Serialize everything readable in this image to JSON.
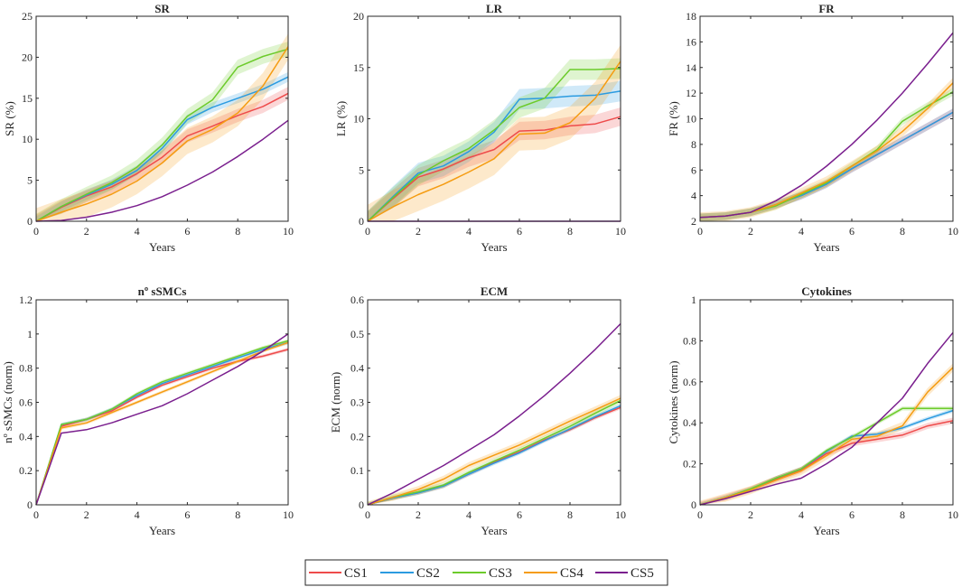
{
  "figure": {
    "background": "#ffffff"
  },
  "series_styles": [
    {
      "name": "CS1",
      "color": "#ee4b4b"
    },
    {
      "name": "CS2",
      "color": "#2b9be0"
    },
    {
      "name": "CS3",
      "color": "#6ccb2b"
    },
    {
      "name": "CS4",
      "color": "#f59c12"
    },
    {
      "name": "CS5",
      "color": "#7a1f8e"
    }
  ],
  "legend": {
    "placement": "bottom-center",
    "entries": [
      "CS1",
      "CS2",
      "CS3",
      "CS4",
      "CS5"
    ]
  },
  "chart_data": [
    {
      "type": "line",
      "title": "SR",
      "xlabel": "Years",
      "ylabel": "SR (%)",
      "xlim": [
        0,
        10
      ],
      "ylim": [
        0,
        25
      ],
      "xticks": [
        0,
        2,
        4,
        6,
        8,
        10
      ],
      "yticks": [
        0,
        5,
        10,
        15,
        20,
        25
      ],
      "x": [
        0,
        1,
        2,
        3,
        4,
        5,
        6,
        7,
        8,
        9,
        10
      ],
      "series": [
        {
          "name": "CS1",
          "values": [
            0,
            1.7,
            3.1,
            4.2,
            5.8,
            7.8,
            10.4,
            11.6,
            12.9,
            14.0,
            15.6
          ],
          "band": 0.8
        },
        {
          "name": "CS2",
          "values": [
            0,
            1.8,
            3.2,
            4.5,
            6.2,
            8.9,
            12.4,
            13.9,
            15.0,
            16.1,
            17.6
          ],
          "band": 0.6
        },
        {
          "name": "CS3",
          "values": [
            0,
            1.8,
            3.3,
            4.7,
            6.6,
            9.3,
            12.8,
            14.8,
            18.8,
            20.1,
            21.0
          ],
          "band": 0.9
        },
        {
          "name": "CS4",
          "values": [
            0,
            1.1,
            2.1,
            3.3,
            4.9,
            7.1,
            9.8,
            11.2,
            13.2,
            16.5,
            21.3
          ],
          "band": 1.6
        },
        {
          "name": "CS5",
          "values": [
            0,
            0.1,
            0.5,
            1.1,
            1.9,
            3.0,
            4.4,
            6.0,
            7.9,
            10.0,
            12.3
          ],
          "band": 0
        }
      ]
    },
    {
      "type": "line",
      "title": "LR",
      "xlabel": "Years",
      "ylabel": "LR (%)",
      "xlim": [
        0,
        10
      ],
      "ylim": [
        0,
        20
      ],
      "xticks": [
        0,
        2,
        4,
        6,
        8,
        10
      ],
      "yticks": [
        0,
        5,
        10,
        15,
        20
      ],
      "x": [
        0,
        1,
        2,
        3,
        4,
        5,
        6,
        7,
        8,
        9,
        10
      ],
      "series": [
        {
          "name": "CS1",
          "values": [
            0,
            2.2,
            4.3,
            5.1,
            6.2,
            7.0,
            8.8,
            8.9,
            9.3,
            9.5,
            10.2
          ],
          "band": 0.9
        },
        {
          "name": "CS2",
          "values": [
            0,
            2.4,
            4.7,
            5.4,
            6.8,
            8.7,
            11.9,
            12.0,
            12.2,
            12.3,
            12.7
          ],
          "band": 1.0
        },
        {
          "name": "CS3",
          "values": [
            0,
            2.3,
            4.5,
            5.9,
            7.1,
            8.9,
            11.1,
            12.0,
            14.8,
            14.8,
            14.9
          ],
          "band": 1.0
        },
        {
          "name": "CS4",
          "values": [
            0,
            1.4,
            2.6,
            3.6,
            4.8,
            6.1,
            8.5,
            8.6,
            9.6,
            12.0,
            15.6
          ],
          "band": 1.6
        },
        {
          "name": "CS5",
          "values": [
            0,
            0,
            0,
            0,
            0,
            0,
            0,
            0,
            0,
            0,
            0
          ],
          "band": 0
        }
      ]
    },
    {
      "type": "line",
      "title": "FR",
      "xlabel": "Years",
      "ylabel": "FR (%)",
      "xlim": [
        0,
        10
      ],
      "ylim": [
        2,
        18
      ],
      "xticks": [
        0,
        2,
        4,
        6,
        8,
        10
      ],
      "yticks": [
        2,
        4,
        6,
        8,
        10,
        12,
        14,
        16,
        18
      ],
      "x": [
        0,
        1,
        2,
        3,
        4,
        5,
        6,
        7,
        8,
        9,
        10
      ],
      "series": [
        {
          "name": "CS1",
          "values": [
            2.3,
            2.4,
            2.7,
            3.3,
            4.0,
            4.9,
            6.1,
            7.2,
            8.3,
            9.4,
            10.5
          ],
          "band": 0.3
        },
        {
          "name": "CS2",
          "values": [
            2.3,
            2.4,
            2.7,
            3.3,
            4.0,
            4.9,
            6.1,
            7.2,
            8.3,
            9.4,
            10.5
          ],
          "band": 0.3
        },
        {
          "name": "CS3",
          "values": [
            2.3,
            2.4,
            2.7,
            3.2,
            4.1,
            5.0,
            6.3,
            7.6,
            9.8,
            11.0,
            12.1
          ],
          "band": 0.3
        },
        {
          "name": "CS4",
          "values": [
            2.3,
            2.4,
            2.7,
            3.3,
            4.2,
            5.1,
            6.3,
            7.5,
            9.0,
            10.8,
            12.8
          ],
          "band": 0.4
        },
        {
          "name": "CS5",
          "values": [
            2.3,
            2.4,
            2.7,
            3.6,
            4.8,
            6.3,
            8.0,
            9.9,
            12.0,
            14.3,
            16.7
          ],
          "band": 0
        }
      ]
    },
    {
      "type": "line",
      "title": "nº sSMCs",
      "xlabel": "Years",
      "ylabel": "nº sSMCs (norm)",
      "xlim": [
        0,
        10
      ],
      "ylim": [
        0,
        1.2
      ],
      "xticks": [
        0,
        2,
        4,
        6,
        8,
        10
      ],
      "yticks": [
        0,
        0.2,
        0.4,
        0.6,
        0.8,
        1,
        1.2
      ],
      "x": [
        0,
        1,
        2,
        3,
        4,
        5,
        6,
        7,
        8,
        9,
        10
      ],
      "series": [
        {
          "name": "CS1",
          "values": [
            0,
            0.46,
            0.5,
            0.55,
            0.63,
            0.7,
            0.75,
            0.8,
            0.84,
            0.87,
            0.91
          ],
          "band": 0.01
        },
        {
          "name": "CS2",
          "values": [
            0,
            0.47,
            0.5,
            0.56,
            0.64,
            0.71,
            0.76,
            0.81,
            0.86,
            0.91,
            0.95
          ],
          "band": 0.01
        },
        {
          "name": "CS3",
          "values": [
            0,
            0.47,
            0.5,
            0.56,
            0.65,
            0.72,
            0.77,
            0.82,
            0.87,
            0.92,
            0.96
          ],
          "band": 0.01
        },
        {
          "name": "CS4",
          "values": [
            0,
            0.45,
            0.48,
            0.54,
            0.6,
            0.66,
            0.72,
            0.78,
            0.84,
            0.9,
            0.95
          ],
          "band": 0.01
        },
        {
          "name": "CS5",
          "values": [
            0,
            0.42,
            0.44,
            0.48,
            0.53,
            0.58,
            0.65,
            0.73,
            0.81,
            0.9,
            1.0
          ],
          "band": 0
        }
      ]
    },
    {
      "type": "line",
      "title": "ECM",
      "xlabel": "Years",
      "ylabel": "ECM (norm)",
      "xlim": [
        0,
        10
      ],
      "ylim": [
        0,
        0.6
      ],
      "xticks": [
        0,
        2,
        4,
        6,
        8,
        10
      ],
      "yticks": [
        0,
        0.1,
        0.2,
        0.3,
        0.4,
        0.5,
        0.6
      ],
      "x": [
        0,
        1,
        2,
        3,
        4,
        5,
        6,
        7,
        8,
        9,
        10
      ],
      "series": [
        {
          "name": "CS1",
          "values": [
            0,
            0.02,
            0.035,
            0.055,
            0.09,
            0.125,
            0.155,
            0.19,
            0.22,
            0.255,
            0.285
          ],
          "band": 0.006
        },
        {
          "name": "CS2",
          "values": [
            0,
            0.02,
            0.035,
            0.055,
            0.09,
            0.122,
            0.152,
            0.188,
            0.222,
            0.258,
            0.29
          ],
          "band": 0.006
        },
        {
          "name": "CS3",
          "values": [
            0,
            0.022,
            0.038,
            0.058,
            0.095,
            0.128,
            0.16,
            0.195,
            0.23,
            0.268,
            0.305
          ],
          "band": 0.008
        },
        {
          "name": "CS4",
          "values": [
            0,
            0.022,
            0.045,
            0.075,
            0.115,
            0.145,
            0.175,
            0.21,
            0.245,
            0.278,
            0.312
          ],
          "band": 0.01
        },
        {
          "name": "CS5",
          "values": [
            0,
            0.035,
            0.075,
            0.115,
            0.16,
            0.205,
            0.26,
            0.32,
            0.385,
            0.455,
            0.53
          ],
          "band": 0
        }
      ]
    },
    {
      "type": "line",
      "title": "Cytokines",
      "xlabel": "Years",
      "ylabel": "Cytokines (norm)",
      "xlim": [
        0,
        10
      ],
      "ylim": [
        0,
        1
      ],
      "xticks": [
        0,
        2,
        4,
        6,
        8,
        10
      ],
      "yticks": [
        0,
        0.2,
        0.4,
        0.6,
        0.8,
        1
      ],
      "x": [
        0,
        1,
        2,
        3,
        4,
        5,
        6,
        7,
        8,
        9,
        10
      ],
      "series": [
        {
          "name": "CS1",
          "values": [
            0,
            0.035,
            0.075,
            0.125,
            0.17,
            0.25,
            0.3,
            0.32,
            0.34,
            0.385,
            0.41
          ],
          "band": 0.015
        },
        {
          "name": "CS2",
          "values": [
            0,
            0.035,
            0.075,
            0.13,
            0.175,
            0.26,
            0.335,
            0.345,
            0.375,
            0.42,
            0.46
          ],
          "band": 0.01
        },
        {
          "name": "CS3",
          "values": [
            0,
            0.035,
            0.078,
            0.13,
            0.175,
            0.265,
            0.33,
            0.4,
            0.47,
            0.47,
            0.47
          ],
          "band": 0.01
        },
        {
          "name": "CS4",
          "values": [
            0,
            0.035,
            0.072,
            0.12,
            0.165,
            0.24,
            0.32,
            0.335,
            0.385,
            0.55,
            0.67
          ],
          "band": 0.02
        },
        {
          "name": "CS5",
          "values": [
            0,
            0.03,
            0.065,
            0.1,
            0.13,
            0.2,
            0.28,
            0.4,
            0.52,
            0.69,
            0.84
          ],
          "band": 0
        }
      ]
    }
  ]
}
